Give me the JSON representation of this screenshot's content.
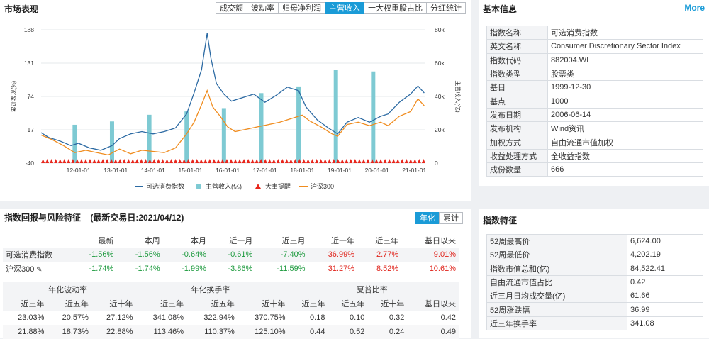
{
  "market": {
    "title": "市场表现",
    "tabs": [
      "成交额",
      "波动率",
      "归母净利润",
      "主营收入",
      "十大权重股占比",
      "分红统计"
    ],
    "active_tab": 3
  },
  "chart_data": {
    "type": "line",
    "ylabel_left": "累计表现(%)",
    "ylabel_right": "主营收入(亿)",
    "ylim_left": [
      -40,
      188
    ],
    "yticks_left": [
      "188",
      "131",
      "74",
      "17",
      "-40"
    ],
    "ylim_right": [
      0,
      80000
    ],
    "yticks_right": [
      "80k",
      "60k",
      "40k",
      "20k",
      "0"
    ],
    "xticks": [
      "12-01-01",
      "13-01-01",
      "14-01-01",
      "15-01-01",
      "16-01-01",
      "17-01-01",
      "18-01-01",
      "19-01-01",
      "20-01-01",
      "21-01-01"
    ],
    "legend": [
      "可选消费指数",
      "主营收入(亿)",
      "大事提醒",
      "沪深300"
    ],
    "colors": {
      "index": "#2c6aa3",
      "revenue": "#7ecad3",
      "event": "#e8261c",
      "hs300": "#f08c1e"
    },
    "bars": {
      "x": [
        2011.9,
        2012.9,
        2013.9,
        2014.9,
        2015.9,
        2016.9,
        2017.9,
        2018.9,
        2019.9
      ],
      "values": [
        23000,
        25000,
        29000,
        31000,
        33000,
        42000,
        46000,
        56000,
        55000
      ]
    },
    "series": [
      {
        "name": "可选消费指数",
        "x": [
          2011.0,
          2011.2,
          2011.5,
          2011.8,
          2012.0,
          2012.3,
          2012.6,
          2012.9,
          2013.1,
          2013.4,
          2013.7,
          2014.0,
          2014.3,
          2014.6,
          2014.9,
          2015.1,
          2015.3,
          2015.45,
          2015.55,
          2015.7,
          2015.9,
          2016.1,
          2016.4,
          2016.7,
          2017.0,
          2017.3,
          2017.6,
          2017.9,
          2018.1,
          2018.4,
          2018.7,
          2018.95,
          2019.2,
          2019.5,
          2019.8,
          2020.1,
          2020.3,
          2020.6,
          2020.9,
          2021.1,
          2021.27
        ],
        "values": [
          12,
          4,
          -2,
          -10,
          -6,
          -14,
          -18,
          -10,
          2,
          10,
          14,
          10,
          14,
          20,
          44,
          80,
          120,
          182,
          140,
          96,
          78,
          66,
          72,
          78,
          64,
          76,
          90,
          84,
          56,
          34,
          20,
          10,
          30,
          38,
          30,
          40,
          44,
          64,
          78,
          92,
          80
        ]
      },
      {
        "name": "沪深300",
        "x": [
          2011.0,
          2011.3,
          2011.6,
          2011.9,
          2012.2,
          2012.5,
          2012.8,
          2013.1,
          2013.4,
          2013.7,
          2014.0,
          2014.3,
          2014.6,
          2014.9,
          2015.1,
          2015.3,
          2015.45,
          2015.6,
          2015.8,
          2016.0,
          2016.2,
          2016.5,
          2016.8,
          2017.1,
          2017.4,
          2017.7,
          2018.0,
          2018.2,
          2018.5,
          2018.8,
          2018.95,
          2019.2,
          2019.5,
          2019.8,
          2020.1,
          2020.3,
          2020.6,
          2020.9,
          2021.1,
          2021.27
        ],
        "values": [
          8,
          0,
          -10,
          -22,
          -18,
          -22,
          -26,
          -16,
          -24,
          -18,
          -20,
          -22,
          -14,
          10,
          30,
          60,
          84,
          56,
          40,
          22,
          14,
          18,
          22,
          26,
          30,
          36,
          42,
          32,
          22,
          10,
          6,
          26,
          30,
          24,
          30,
          24,
          40,
          48,
          70,
          58
        ]
      }
    ],
    "events": {
      "x_start": 2011.05,
      "x_end": 2021.25,
      "count": 90
    }
  },
  "basic": {
    "title": "基本信息",
    "more": "More",
    "rows": [
      [
        "指数名称",
        "可选消费指数"
      ],
      [
        "英文名称",
        "Consumer Discretionary Sector Index"
      ],
      [
        "指数代码",
        "882004.WI"
      ],
      [
        "指数类型",
        "股票类"
      ],
      [
        "基日",
        "1999-12-30"
      ],
      [
        "基点",
        "1000"
      ],
      [
        "发布日期",
        "2006-06-14"
      ],
      [
        "发布机构",
        "Wind资讯"
      ],
      [
        "加权方式",
        "自由流通市值加权"
      ],
      [
        "收益处理方式",
        "全收益指数"
      ],
      [
        "成份数量",
        "666"
      ]
    ]
  },
  "returns": {
    "title": "指数回报与风险特征",
    "date": "(最新交易日:2021/04/12)",
    "toggle": [
      "年化",
      "累计"
    ],
    "headers": [
      "最新",
      "本周",
      "本月",
      "近一月",
      "近三月",
      "近一年",
      "近三年",
      "基日以来"
    ],
    "rows": [
      {
        "name": "可选消费指数",
        "values": [
          "-1.56%",
          "-1.56%",
          "-0.64%",
          "-0.61%",
          "-7.40%",
          "36.99%",
          "2.77%",
          "9.01%"
        ]
      },
      {
        "name": "沪深300",
        "values": [
          "-1.74%",
          "-1.74%",
          "-1.99%",
          "-3.86%",
          "-11.59%",
          "31.27%",
          "8.52%",
          "10.61%"
        ]
      }
    ],
    "group_headers": [
      "年化波动率",
      "年化换手率",
      "夏普比率"
    ],
    "sub_headers": [
      "近三年",
      "近五年",
      "近十年",
      "近三年",
      "近五年",
      "近十年",
      "近三年",
      "近五年",
      "近十年",
      "基日以来"
    ],
    "risk_rows": [
      [
        "23.03%",
        "20.57%",
        "27.12%",
        "341.08%",
        "322.94%",
        "370.75%",
        "0.18",
        "0.10",
        "0.32",
        "0.42"
      ],
      [
        "21.88%",
        "18.73%",
        "22.88%",
        "113.46%",
        "110.37%",
        "125.10%",
        "0.44",
        "0.52",
        "0.24",
        "0.49"
      ]
    ]
  },
  "features": {
    "title": "指数特征",
    "rows": [
      [
        "52周最高价",
        "6,624.00"
      ],
      [
        "52周最低价",
        "4,202.19"
      ],
      [
        "指数市值总和(亿)",
        "84,522.41"
      ],
      [
        "自由流通市值占比",
        "0.42"
      ],
      [
        "近三月日均成交量(亿)",
        "61.66"
      ],
      [
        "52周涨跌幅",
        "36.99"
      ],
      [
        "近三年换手率",
        "341.08"
      ]
    ]
  }
}
